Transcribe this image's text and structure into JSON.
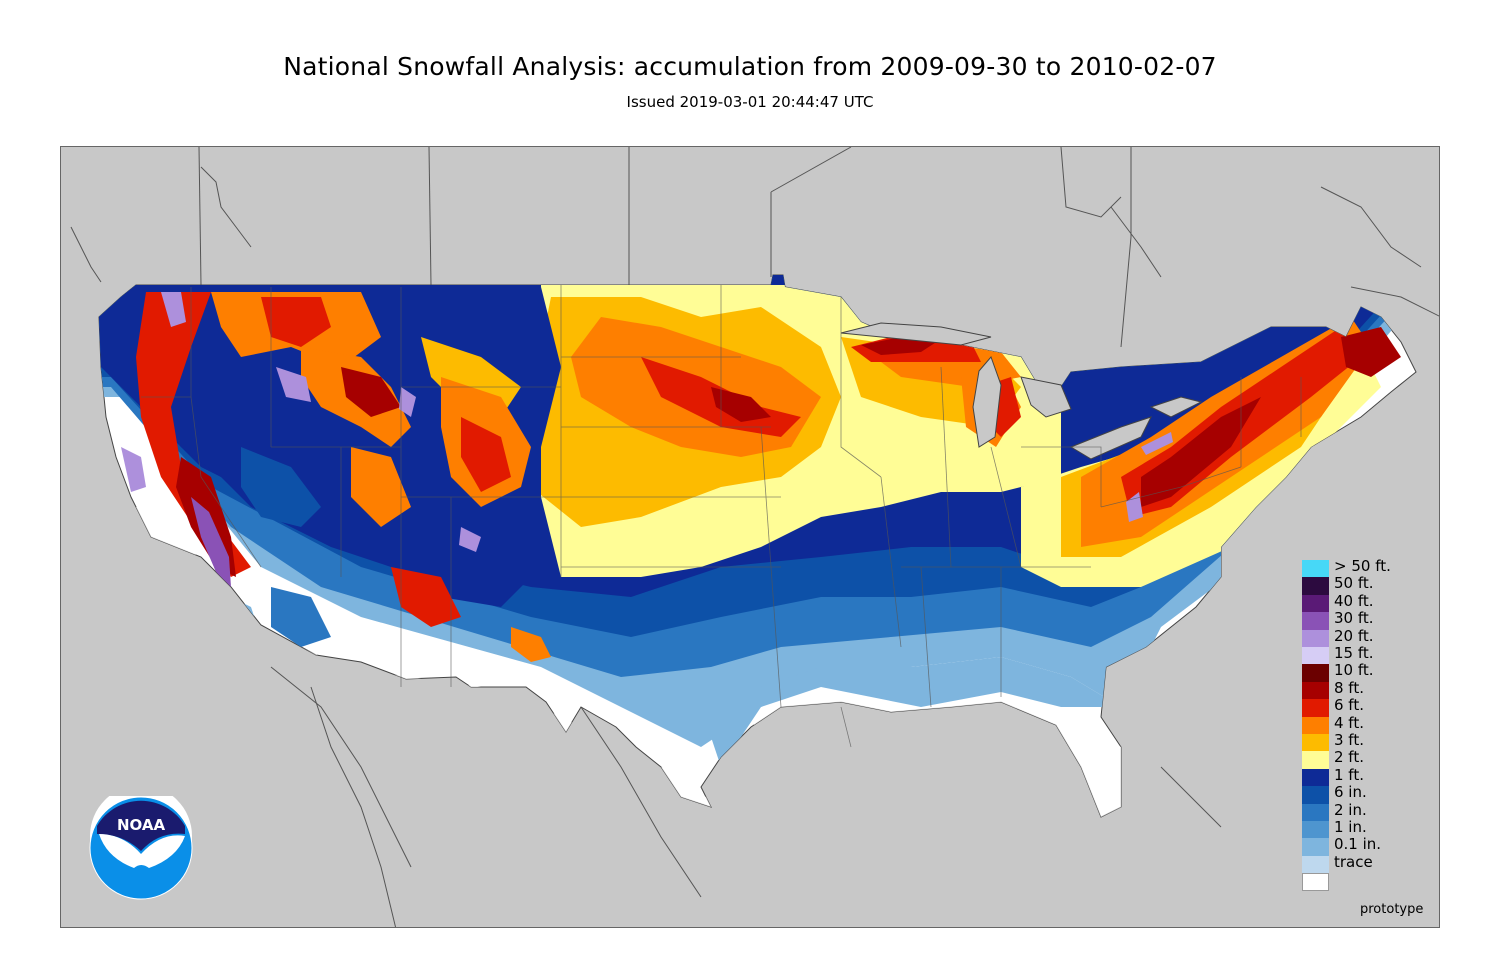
{
  "title": "National Snowfall Analysis: accumulation from 2009-09-30 to 2010-02-07",
  "subtitle": "Issued 2019-03-01 20:44:47 UTC",
  "footer_note": "prototype",
  "logo_text": "NOAA",
  "colors": {
    "map_background": "#c8c8c8",
    "land_trace": "#ffffff",
    "boundary": "#555555"
  },
  "legend": [
    {
      "label": "> 50 ft.",
      "color": "#47d8f7"
    },
    {
      "label": "50 ft.",
      "color": "#2c0a3f"
    },
    {
      "label": "40 ft.",
      "color": "#5a1a76"
    },
    {
      "label": "30 ft.",
      "color": "#8a52b6"
    },
    {
      "label": "20 ft.",
      "color": "#ad90dc"
    },
    {
      "label": "15 ft.",
      "color": "#d6cdf5"
    },
    {
      "label": "10 ft.",
      "color": "#6b0000"
    },
    {
      "label": "8 ft.",
      "color": "#a60000"
    },
    {
      "label": "6 ft.",
      "color": "#e11a00"
    },
    {
      "label": "4 ft.",
      "color": "#fe7f00"
    },
    {
      "label": "3 ft.",
      "color": "#fdbb00"
    },
    {
      "label": "2 ft.",
      "color": "#fffd96"
    },
    {
      "label": "1 ft.",
      "color": "#0e2a96"
    },
    {
      "label": "6 in.",
      "color": "#0d51a8"
    },
    {
      "label": "2 in.",
      "color": "#2a77c1"
    },
    {
      "label": "1 in.",
      "color": "#4e95cf"
    },
    {
      "label": "0.1 in.",
      "color": "#7eb5de"
    },
    {
      "label": "trace",
      "color": "#bed8ee"
    },
    {
      "label": "",
      "color": "#ffffff"
    }
  ]
}
